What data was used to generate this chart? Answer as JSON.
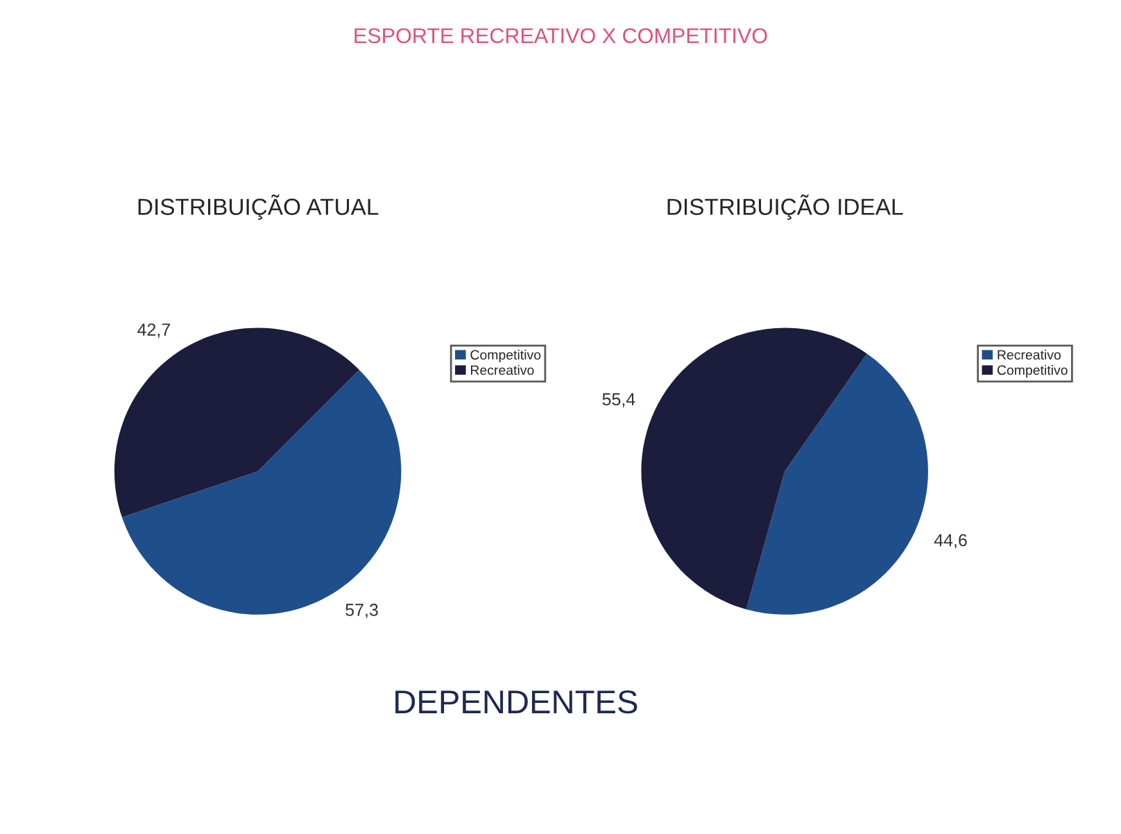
{
  "chart_data": [
    {
      "type": "pie",
      "title": "DISTRIBUIÇÃO ATUAL",
      "categories": [
        "Competitivo",
        "Recreativo"
      ],
      "values": [
        57.3,
        42.7
      ],
      "value_labels": [
        "57,3",
        "42,7"
      ],
      "colors": [
        "#1f4f8a",
        "#1c1c3c"
      ],
      "legend": "right",
      "annotations": [
        "ESPORTE RECREATIVO X COMPETITIVO",
        "DEPENDENTES"
      ]
    },
    {
      "type": "pie",
      "title": "DISTRIBUIÇÃO IDEAL",
      "categories": [
        "Recreativo",
        "Competitivo"
      ],
      "values": [
        44.6,
        55.4
      ],
      "value_labels": [
        "44,6",
        "55,4"
      ],
      "colors": [
        "#1f4f8a",
        "#1c1c3c"
      ],
      "legend": "right"
    }
  ]
}
